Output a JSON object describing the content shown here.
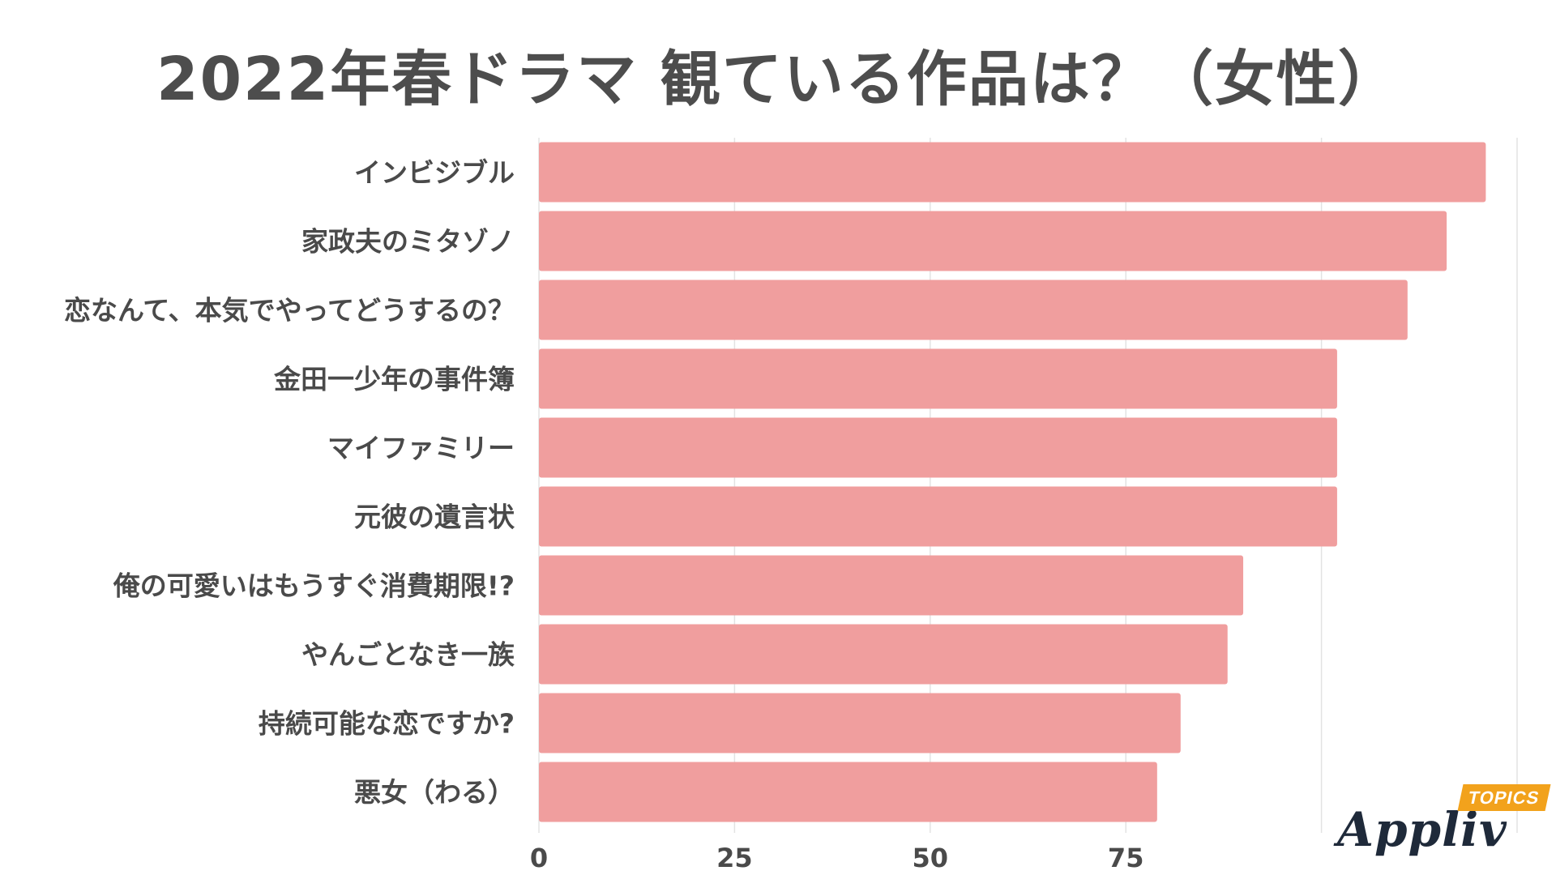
{
  "chart_data": {
    "type": "bar",
    "orientation": "horizontal",
    "title": "2022年春ドラマ 観ている作品は？（女性）",
    "categories": [
      "インビジブル",
      "家政夫のミタゾノ",
      "恋なんて、本気でやってどうするの？",
      "金田一少年の事件簿",
      "マイファミリー",
      "元彼の遺言状",
      "俺の可愛いはもうすぐ消費期限!?",
      "やんごとなき一族",
      "持続可能な恋ですか?",
      "悪女（わる）"
    ],
    "values": [
      121,
      116,
      111,
      102,
      102,
      102,
      90,
      88,
      82,
      79
    ],
    "xlim": [
      0,
      125
    ],
    "xticks": [
      0,
      25,
      50,
      75
    ],
    "grid": true,
    "bar_color": "#f09e9e",
    "grid_color": "#e3e3e3"
  },
  "brand": {
    "name": "Appliv",
    "tag": "TOPICS"
  }
}
